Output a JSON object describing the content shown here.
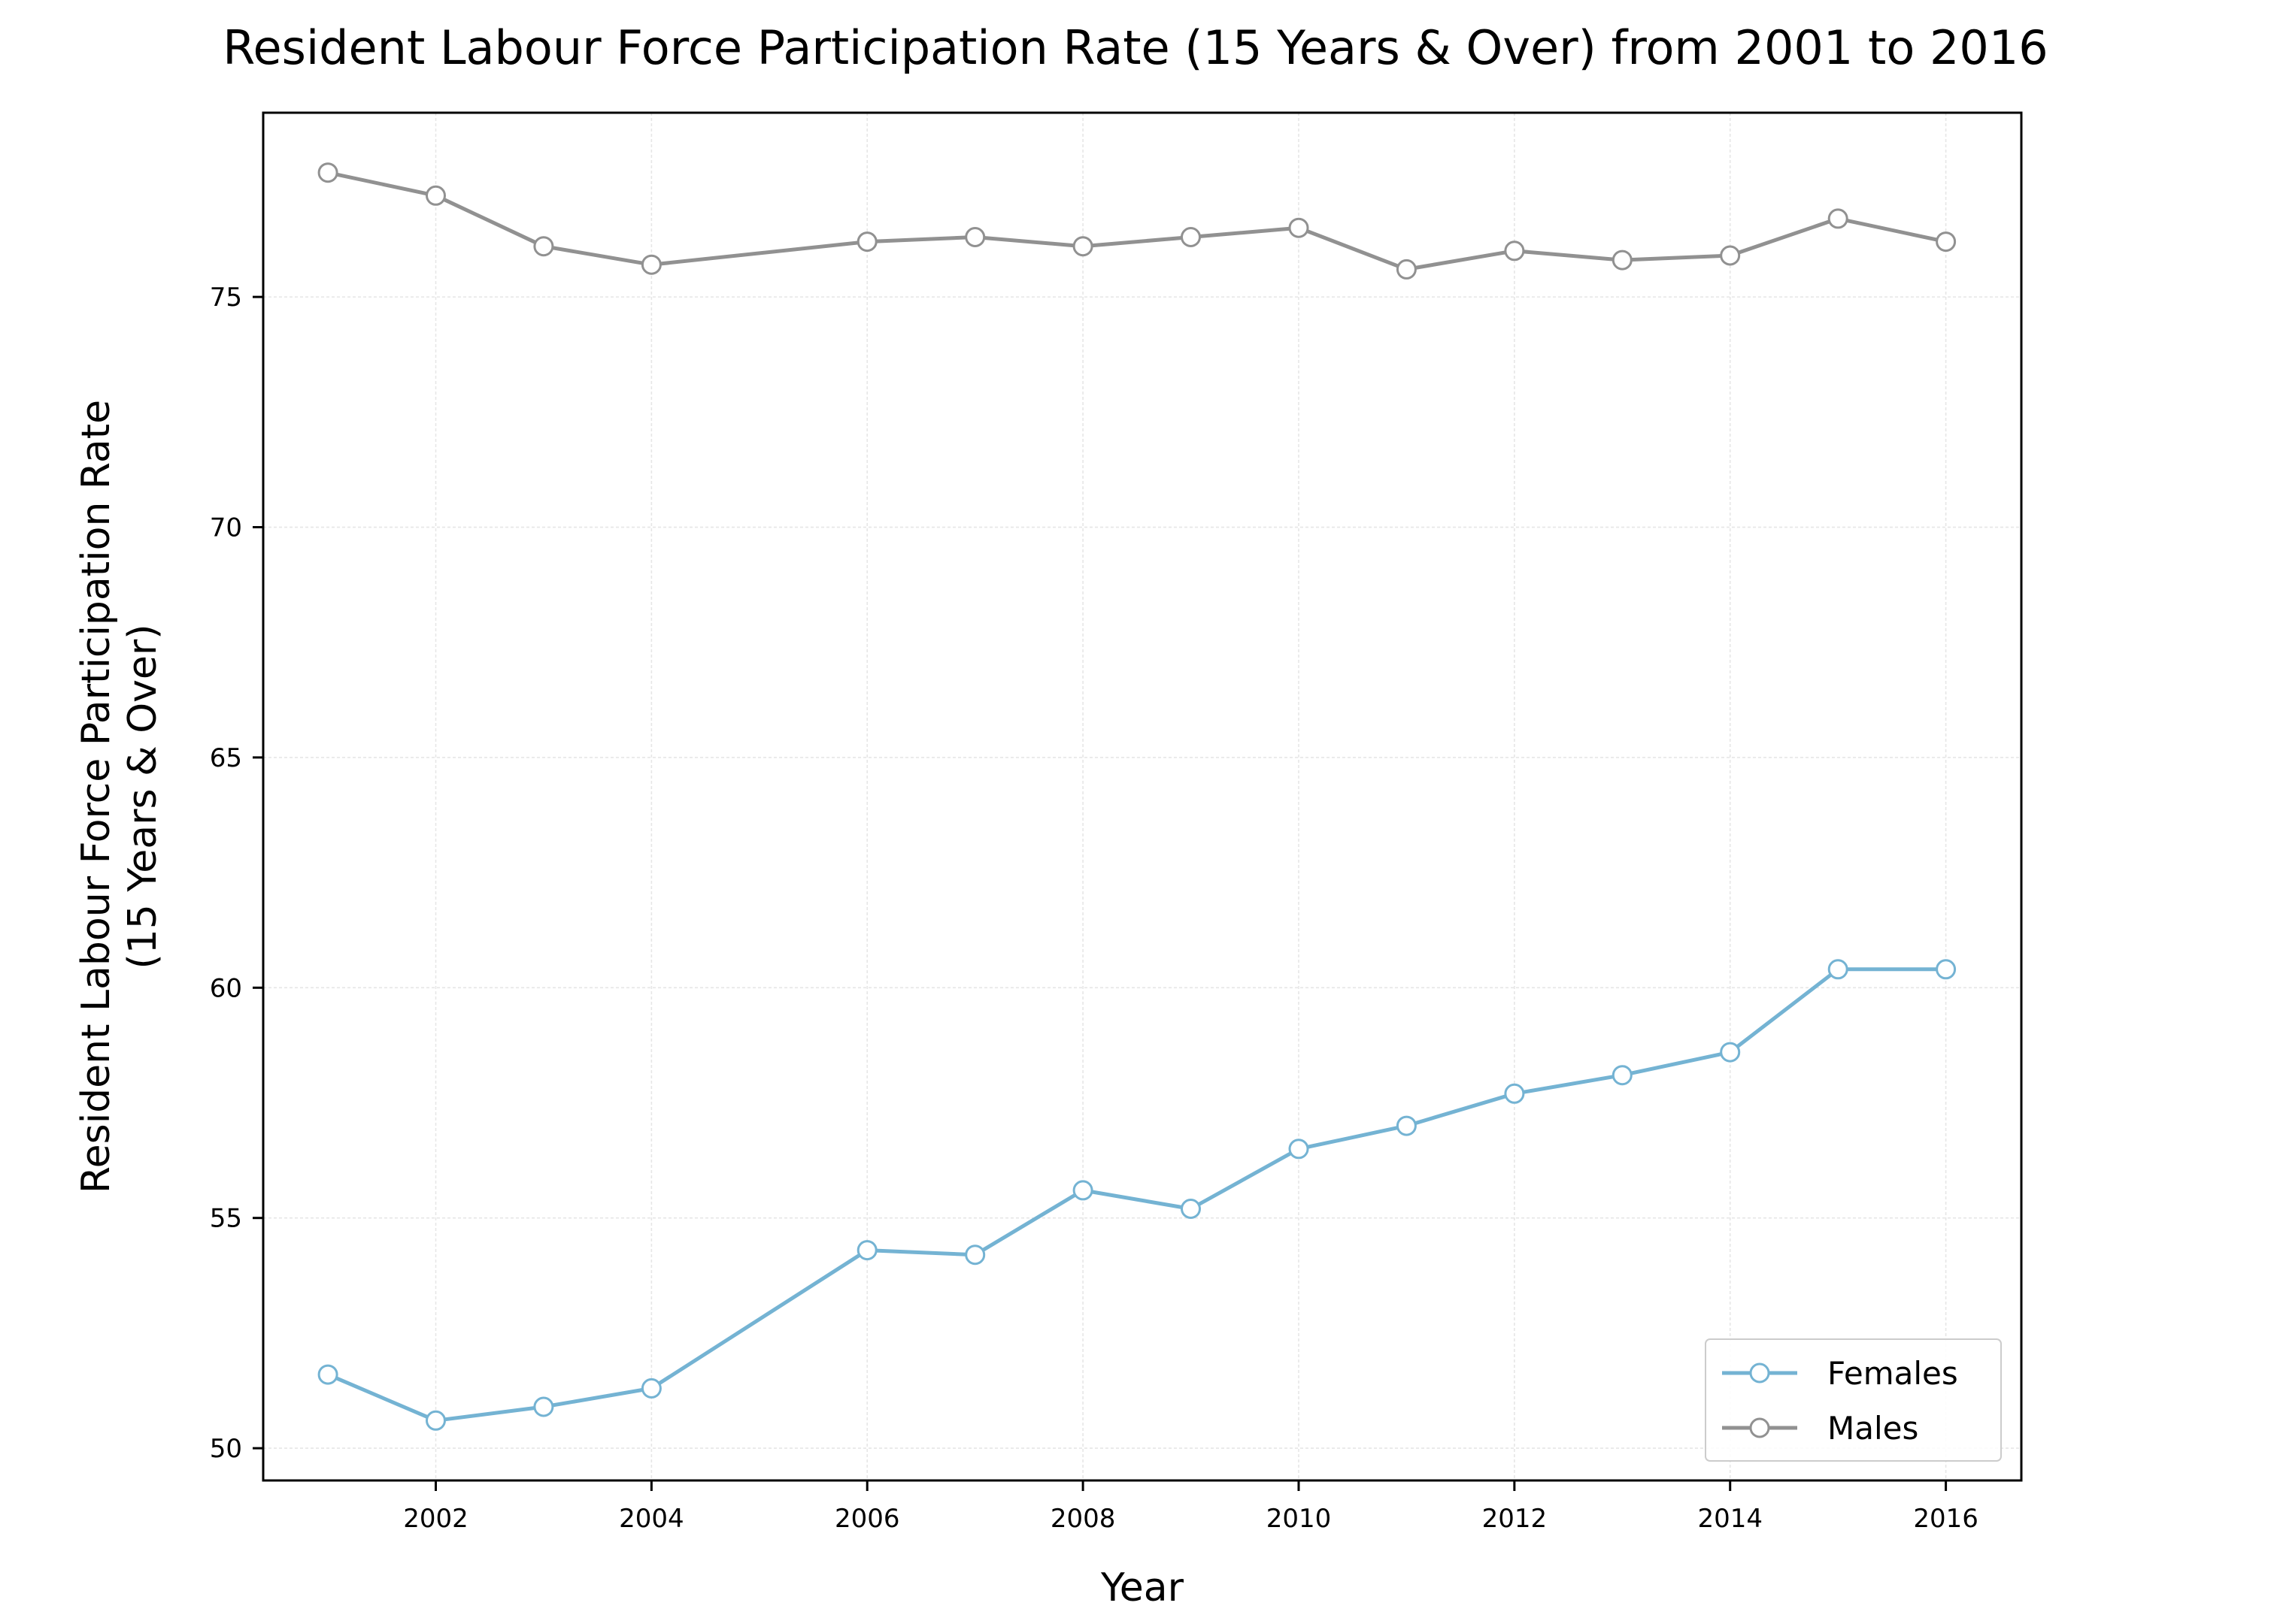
{
  "chart_data": {
    "type": "line",
    "title": "Resident Labour Force Participation Rate (15 Years & Over) from 2001 to 2016",
    "xlabel": "Year",
    "ylabel_lines": [
      "Resident Labour Force Participation Rate",
      "(15 Years & Over)"
    ],
    "xlim": [
      2000.4,
      2016.7
    ],
    "ylim": [
      49.3,
      79.0
    ],
    "xticks": [
      2002,
      2004,
      2006,
      2008,
      2010,
      2012,
      2014,
      2016
    ],
    "yticks": [
      50,
      55,
      60,
      65,
      70,
      75
    ],
    "grid": true,
    "legend_position": "lower right",
    "series": [
      {
        "name": "Females",
        "color": "#74b3d3",
        "marker": "circle-open",
        "x": [
          2001,
          2002,
          2003,
          2004,
          2006,
          2007,
          2008,
          2009,
          2010,
          2011,
          2012,
          2013,
          2014,
          2015,
          2016
        ],
        "y": [
          51.6,
          50.6,
          50.9,
          51.3,
          54.3,
          54.2,
          55.6,
          55.2,
          56.5,
          57.0,
          57.7,
          58.1,
          58.6,
          60.4,
          60.4
        ]
      },
      {
        "name": "Males",
        "color": "#919191",
        "marker": "circle-open",
        "x": [
          2001,
          2002,
          2003,
          2004,
          2006,
          2007,
          2008,
          2009,
          2010,
          2011,
          2012,
          2013,
          2014,
          2015,
          2016
        ],
        "y": [
          77.7,
          77.2,
          76.1,
          75.7,
          76.2,
          76.3,
          76.1,
          76.3,
          76.5,
          75.6,
          76.0,
          75.8,
          75.9,
          76.7,
          76.2
        ]
      }
    ]
  }
}
